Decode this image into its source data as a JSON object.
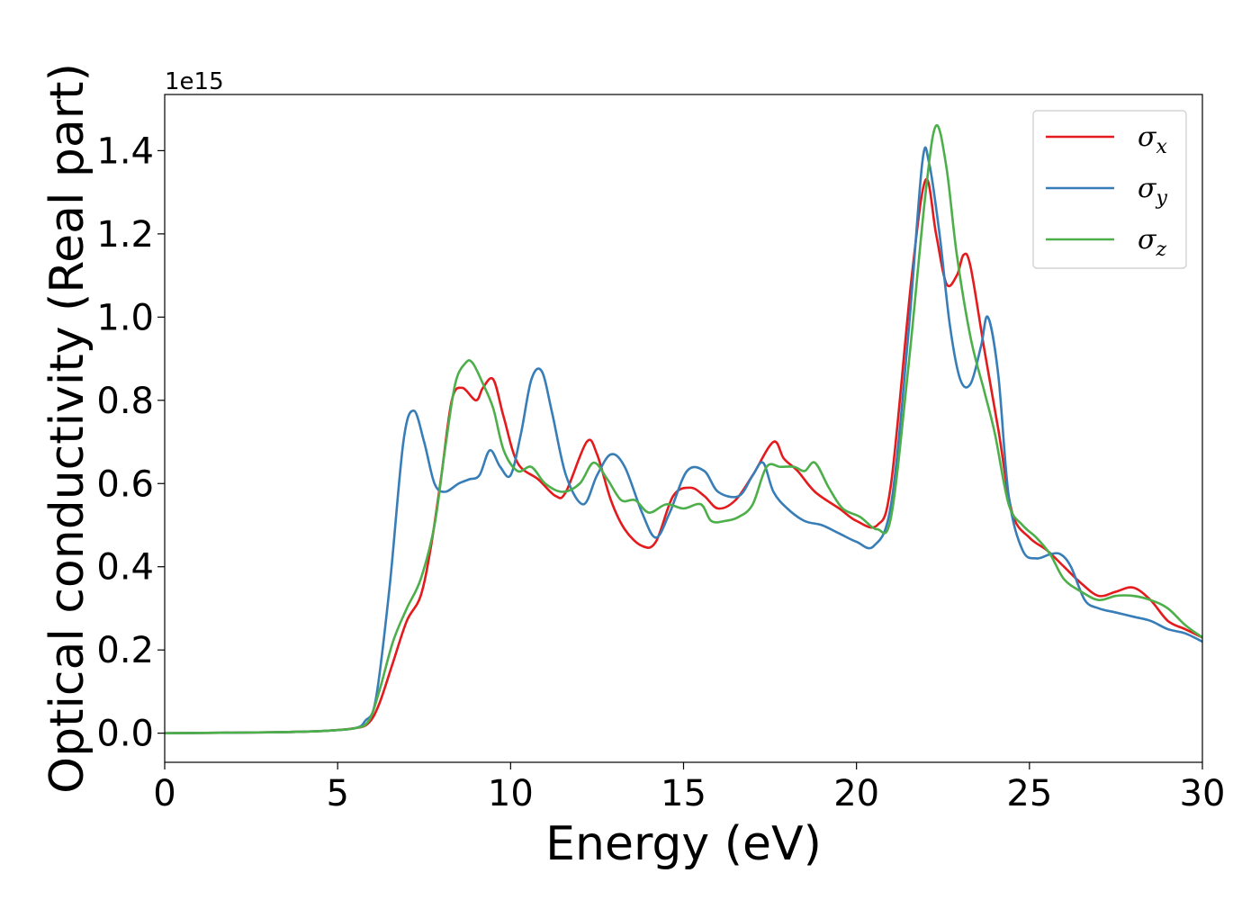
{
  "chart_data": {
    "type": "line",
    "xlabel": "Energy (eV)",
    "ylabel": "Optical conductivity (Real part)",
    "y_offset_label": "1e15",
    "xlim": [
      0,
      30
    ],
    "ylim": [
      -0.07,
      1.535
    ],
    "x_ticks": [
      0,
      5,
      10,
      15,
      20,
      25,
      30
    ],
    "x_tick_labels": [
      "0",
      "5",
      "10",
      "15",
      "20",
      "25",
      "30"
    ],
    "y_ticks": [
      0.0,
      0.2,
      0.4,
      0.6,
      0.8,
      1.0,
      1.2,
      1.4
    ],
    "y_tick_labels": [
      "0.0",
      "0.2",
      "0.4",
      "0.6",
      "0.8",
      "1.0",
      "1.2",
      "1.4"
    ],
    "grid": false,
    "legend_position": "top-right",
    "series": [
      {
        "name": "σx",
        "legend_base": "σ",
        "legend_sub": "x",
        "color": "#e41a1c",
        "points": [
          [
            0,
            0.0
          ],
          [
            3,
            0.002
          ],
          [
            4.5,
            0.005
          ],
          [
            5.5,
            0.012
          ],
          [
            5.9,
            0.025
          ],
          [
            6.2,
            0.07
          ],
          [
            6.6,
            0.17
          ],
          [
            7.0,
            0.27
          ],
          [
            7.4,
            0.33
          ],
          [
            7.7,
            0.45
          ],
          [
            8.0,
            0.62
          ],
          [
            8.3,
            0.8
          ],
          [
            8.6,
            0.83
          ],
          [
            9.0,
            0.8
          ],
          [
            9.2,
            0.83
          ],
          [
            9.5,
            0.85
          ],
          [
            9.8,
            0.76
          ],
          [
            10.2,
            0.65
          ],
          [
            10.8,
            0.61
          ],
          [
            11.3,
            0.57
          ],
          [
            11.6,
            0.58
          ],
          [
            12.2,
            0.7
          ],
          [
            12.5,
            0.67
          ],
          [
            12.9,
            0.56
          ],
          [
            13.3,
            0.49
          ],
          [
            13.8,
            0.45
          ],
          [
            14.2,
            0.46
          ],
          [
            14.7,
            0.57
          ],
          [
            15.2,
            0.59
          ],
          [
            15.6,
            0.57
          ],
          [
            16.0,
            0.54
          ],
          [
            16.5,
            0.56
          ],
          [
            17.0,
            0.62
          ],
          [
            17.6,
            0.7
          ],
          [
            17.9,
            0.66
          ],
          [
            18.3,
            0.63
          ],
          [
            18.8,
            0.58
          ],
          [
            19.5,
            0.54
          ],
          [
            20.0,
            0.51
          ],
          [
            20.6,
            0.5
          ],
          [
            21.0,
            0.6
          ],
          [
            21.6,
            1.1
          ],
          [
            22.0,
            1.33
          ],
          [
            22.3,
            1.2
          ],
          [
            22.6,
            1.08
          ],
          [
            22.9,
            1.1
          ],
          [
            23.1,
            1.15
          ],
          [
            23.3,
            1.12
          ],
          [
            23.7,
            0.92
          ],
          [
            24.1,
            0.73
          ],
          [
            24.5,
            0.53
          ],
          [
            25.0,
            0.47
          ],
          [
            25.5,
            0.44
          ],
          [
            26.0,
            0.4
          ],
          [
            26.5,
            0.36
          ],
          [
            27.0,
            0.33
          ],
          [
            27.5,
            0.34
          ],
          [
            28.0,
            0.35
          ],
          [
            28.5,
            0.32
          ],
          [
            29.0,
            0.27
          ],
          [
            29.5,
            0.25
          ],
          [
            30.0,
            0.23
          ]
        ]
      },
      {
        "name": "σy",
        "legend_base": "σ",
        "legend_sub": "y",
        "color": "#377eb8",
        "points": [
          [
            0,
            0.0
          ],
          [
            3,
            0.002
          ],
          [
            4.5,
            0.005
          ],
          [
            5.5,
            0.012
          ],
          [
            5.8,
            0.03
          ],
          [
            6.1,
            0.08
          ],
          [
            6.5,
            0.35
          ],
          [
            6.9,
            0.7
          ],
          [
            7.2,
            0.775
          ],
          [
            7.5,
            0.7
          ],
          [
            7.8,
            0.6
          ],
          [
            8.1,
            0.58
          ],
          [
            8.5,
            0.6
          ],
          [
            8.8,
            0.61
          ],
          [
            9.1,
            0.62
          ],
          [
            9.4,
            0.68
          ],
          [
            9.7,
            0.64
          ],
          [
            10.0,
            0.62
          ],
          [
            10.3,
            0.72
          ],
          [
            10.6,
            0.85
          ],
          [
            10.9,
            0.87
          ],
          [
            11.2,
            0.77
          ],
          [
            11.6,
            0.62
          ],
          [
            12.1,
            0.55
          ],
          [
            12.5,
            0.62
          ],
          [
            12.9,
            0.67
          ],
          [
            13.3,
            0.64
          ],
          [
            13.8,
            0.53
          ],
          [
            14.2,
            0.47
          ],
          [
            14.6,
            0.53
          ],
          [
            15.1,
            0.63
          ],
          [
            15.6,
            0.63
          ],
          [
            16.0,
            0.58
          ],
          [
            16.6,
            0.57
          ],
          [
            17.0,
            0.62
          ],
          [
            17.3,
            0.65
          ],
          [
            17.6,
            0.58
          ],
          [
            18.0,
            0.54
          ],
          [
            18.5,
            0.51
          ],
          [
            19.0,
            0.5
          ],
          [
            19.5,
            0.48
          ],
          [
            20.0,
            0.46
          ],
          [
            20.5,
            0.45
          ],
          [
            21.0,
            0.55
          ],
          [
            21.5,
            0.96
          ],
          [
            21.9,
            1.37
          ],
          [
            22.1,
            1.37
          ],
          [
            22.4,
            1.2
          ],
          [
            22.7,
            0.98
          ],
          [
            23.0,
            0.85
          ],
          [
            23.3,
            0.84
          ],
          [
            23.6,
            0.93
          ],
          [
            23.8,
            1.0
          ],
          [
            24.1,
            0.86
          ],
          [
            24.4,
            0.57
          ],
          [
            24.8,
            0.44
          ],
          [
            25.2,
            0.42
          ],
          [
            25.6,
            0.43
          ],
          [
            25.9,
            0.43
          ],
          [
            26.2,
            0.4
          ],
          [
            26.6,
            0.32
          ],
          [
            27.0,
            0.3
          ],
          [
            27.5,
            0.29
          ],
          [
            28.0,
            0.28
          ],
          [
            28.5,
            0.27
          ],
          [
            29.0,
            0.25
          ],
          [
            29.5,
            0.24
          ],
          [
            30.0,
            0.22
          ]
        ]
      },
      {
        "name": "σz",
        "legend_base": "σ",
        "legend_sub": "z",
        "color": "#4daf4a",
        "points": [
          [
            0,
            0.0
          ],
          [
            3,
            0.002
          ],
          [
            4.5,
            0.005
          ],
          [
            5.5,
            0.012
          ],
          [
            5.9,
            0.03
          ],
          [
            6.2,
            0.1
          ],
          [
            6.6,
            0.22
          ],
          [
            7.0,
            0.3
          ],
          [
            7.4,
            0.37
          ],
          [
            7.8,
            0.5
          ],
          [
            8.1,
            0.68
          ],
          [
            8.4,
            0.84
          ],
          [
            8.7,
            0.89
          ],
          [
            8.9,
            0.89
          ],
          [
            9.2,
            0.84
          ],
          [
            9.5,
            0.78
          ],
          [
            9.8,
            0.68
          ],
          [
            10.2,
            0.63
          ],
          [
            10.6,
            0.64
          ],
          [
            11.0,
            0.6
          ],
          [
            11.5,
            0.58
          ],
          [
            12.0,
            0.6
          ],
          [
            12.4,
            0.65
          ],
          [
            12.8,
            0.61
          ],
          [
            13.2,
            0.56
          ],
          [
            13.6,
            0.56
          ],
          [
            14.0,
            0.53
          ],
          [
            14.5,
            0.55
          ],
          [
            15.0,
            0.54
          ],
          [
            15.5,
            0.55
          ],
          [
            15.8,
            0.51
          ],
          [
            16.2,
            0.51
          ],
          [
            16.6,
            0.52
          ],
          [
            17.0,
            0.55
          ],
          [
            17.4,
            0.64
          ],
          [
            17.8,
            0.64
          ],
          [
            18.2,
            0.64
          ],
          [
            18.5,
            0.63
          ],
          [
            18.8,
            0.65
          ],
          [
            19.2,
            0.59
          ],
          [
            19.6,
            0.54
          ],
          [
            20.1,
            0.52
          ],
          [
            20.6,
            0.49
          ],
          [
            21.0,
            0.52
          ],
          [
            21.5,
            0.88
          ],
          [
            22.0,
            1.3
          ],
          [
            22.3,
            1.46
          ],
          [
            22.6,
            1.36
          ],
          [
            22.9,
            1.15
          ],
          [
            23.3,
            0.95
          ],
          [
            23.7,
            0.82
          ],
          [
            24.0,
            0.72
          ],
          [
            24.4,
            0.55
          ],
          [
            24.8,
            0.5
          ],
          [
            25.2,
            0.47
          ],
          [
            25.6,
            0.43
          ],
          [
            26.0,
            0.37
          ],
          [
            26.5,
            0.34
          ],
          [
            27.0,
            0.32
          ],
          [
            27.5,
            0.33
          ],
          [
            28.0,
            0.33
          ],
          [
            28.5,
            0.32
          ],
          [
            29.0,
            0.3
          ],
          [
            29.5,
            0.26
          ],
          [
            30.0,
            0.23
          ]
        ]
      }
    ]
  }
}
